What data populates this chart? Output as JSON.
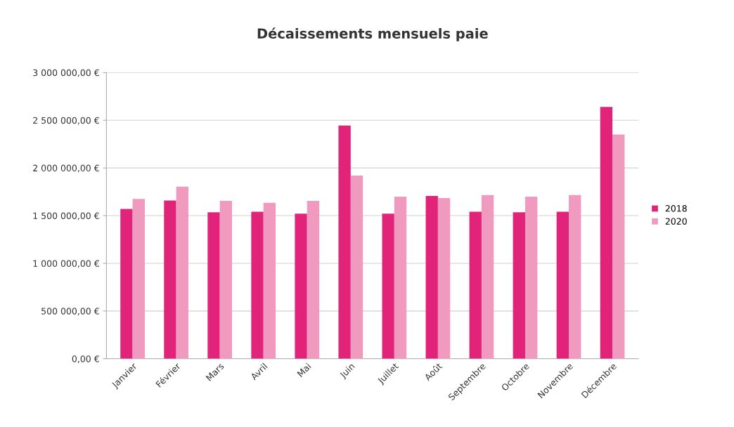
{
  "chart_data": {
    "type": "bar",
    "title": "Décaissements mensuels paie",
    "categories": [
      "Janvier",
      "Février",
      "Mars",
      "Avril",
      "Mai",
      "Juin",
      "Juillet",
      "Août",
      "Septembre",
      "Octobre",
      "Novembre",
      "Décembre"
    ],
    "series": [
      {
        "name": "2018",
        "color": "#e2237a",
        "values": [
          1570000,
          1658000,
          1535000,
          1540000,
          1520000,
          2445000,
          1520000,
          1707000,
          1540000,
          1535000,
          1540000,
          2640000
        ]
      },
      {
        "name": "2020",
        "color": "#f09ac0",
        "values": [
          1675000,
          1805000,
          1655000,
          1635000,
          1655000,
          1920000,
          1700000,
          1685000,
          1715000,
          1700000,
          1715000,
          2350000
        ]
      }
    ],
    "ylim": [
      0,
      3000000
    ],
    "yticks": [
      {
        "value": 0,
        "label": "0,00 €"
      },
      {
        "value": 500000,
        "label": "500 000,00 €"
      },
      {
        "value": 1000000,
        "label": "1 000 000,00 €"
      },
      {
        "value": 1500000,
        "label": "1 500 000,00 €"
      },
      {
        "value": 2000000,
        "label": "2 000 000,00 €"
      },
      {
        "value": 2500000,
        "label": "2 500 000,00 €"
      },
      {
        "value": 3000000,
        "label": "3 000 000,00 €"
      }
    ],
    "grid": "y",
    "legend": "right"
  }
}
